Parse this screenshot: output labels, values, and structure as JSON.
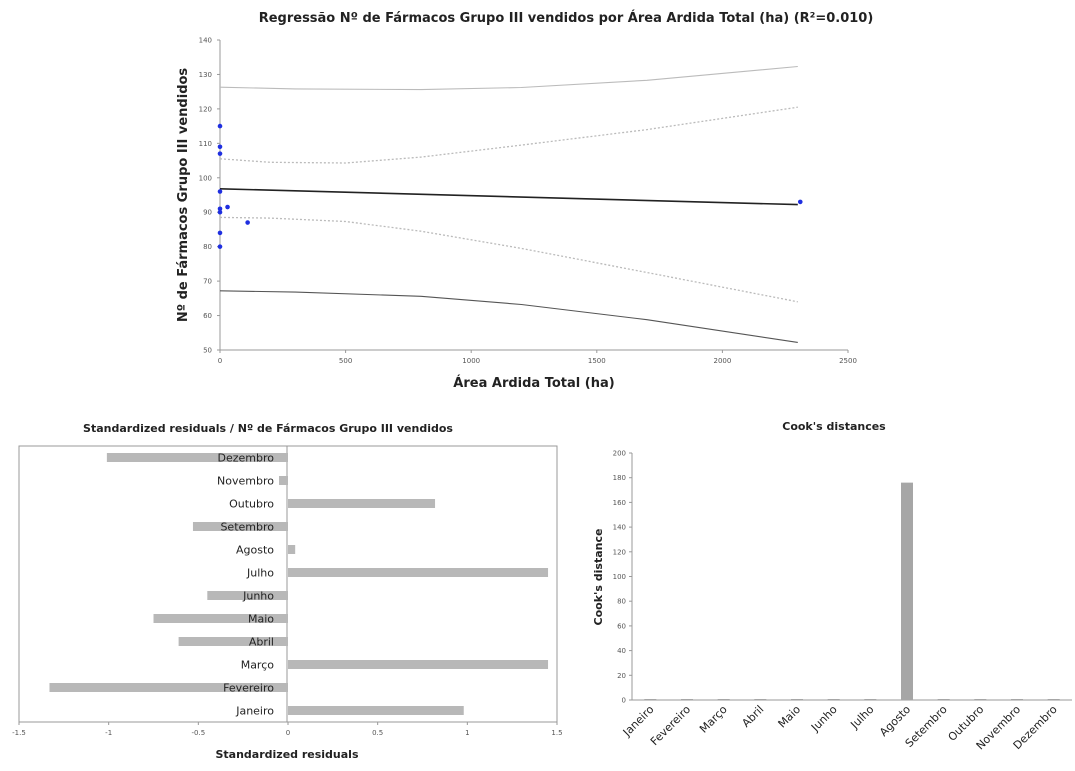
{
  "colors": {
    "points": "#1f2fe0",
    "regression_line": "#222222",
    "confidence_band": "#bbbbbb",
    "prediction_band": "#555555",
    "bars": "#b8b8b8",
    "cook_bars": "#a6a6a6"
  },
  "chart_data": [
    {
      "type": "scatter",
      "title": "Regressão Nº de Fármacos Grupo III vendidos por Área Ardida Total (ha) (R²=0.010)",
      "xlabel": "Área Ardida Total (ha)",
      "ylabel": "Nº de Fármacos Grupo III vendidos",
      "xlim": [
        0,
        2500
      ],
      "ylim": [
        50,
        140
      ],
      "xticks": [
        0,
        500,
        1000,
        1500,
        2000,
        2500
      ],
      "yticks": [
        50,
        60,
        70,
        80,
        90,
        100,
        110,
        120,
        130,
        140
      ],
      "points": [
        {
          "x": 0,
          "y": 115
        },
        {
          "x": 0,
          "y": 109
        },
        {
          "x": 0,
          "y": 107
        },
        {
          "x": 0,
          "y": 96
        },
        {
          "x": 0,
          "y": 91
        },
        {
          "x": 0,
          "y": 90
        },
        {
          "x": 0,
          "y": 84
        },
        {
          "x": 0,
          "y": 80
        },
        {
          "x": 30,
          "y": 91.5
        },
        {
          "x": 110,
          "y": 87
        },
        {
          "x": 2310,
          "y": 93
        }
      ],
      "regression": [
        {
          "x": 0,
          "y": 96.8
        },
        {
          "x": 2300,
          "y": 92.2
        }
      ],
      "confidence_upper": [
        {
          "x": 0,
          "y": 105.5
        },
        {
          "x": 200,
          "y": 104.5
        },
        {
          "x": 500,
          "y": 104.3
        },
        {
          "x": 800,
          "y": 106
        },
        {
          "x": 1200,
          "y": 109.5
        },
        {
          "x": 1700,
          "y": 114
        },
        {
          "x": 2300,
          "y": 120.5
        }
      ],
      "confidence_lower": [
        {
          "x": 0,
          "y": 88.5
        },
        {
          "x": 200,
          "y": 88.3
        },
        {
          "x": 500,
          "y": 87.3
        },
        {
          "x": 800,
          "y": 84.5
        },
        {
          "x": 1200,
          "y": 79.5
        },
        {
          "x": 1700,
          "y": 72.5
        },
        {
          "x": 2300,
          "y": 64
        }
      ],
      "prediction_upper": [
        {
          "x": 0,
          "y": 126.3
        },
        {
          "x": 300,
          "y": 125.8
        },
        {
          "x": 800,
          "y": 125.6
        },
        {
          "x": 1200,
          "y": 126.2
        },
        {
          "x": 1700,
          "y": 128.3
        },
        {
          "x": 2300,
          "y": 132.3
        }
      ],
      "prediction_lower": [
        {
          "x": 0,
          "y": 67.2
        },
        {
          "x": 300,
          "y": 66.8
        },
        {
          "x": 800,
          "y": 65.6
        },
        {
          "x": 1200,
          "y": 63.2
        },
        {
          "x": 1700,
          "y": 58.8
        },
        {
          "x": 2300,
          "y": 52.2
        }
      ]
    },
    {
      "type": "bar",
      "orientation": "horizontal",
      "title": "Standardized residuals / Nº de Fármacos Grupo III vendidos",
      "xlabel": "Standardized residuals",
      "xlim": [
        -1.5,
        1.5
      ],
      "xticks": [
        -1.5,
        -1,
        -0.5,
        0,
        0.5,
        1,
        1.5
      ],
      "categories": [
        "Janeiro",
        "Fevereiro",
        "Março",
        "Abril",
        "Maio",
        "Junho",
        "Julho",
        "Agosto",
        "Setembro",
        "Outubro",
        "Novembro",
        "Dezembro"
      ],
      "values": [
        0.98,
        -1.33,
        1.45,
        -0.61,
        -0.75,
        -0.45,
        1.45,
        0.04,
        -0.53,
        0.82,
        -0.05,
        -1.01
      ]
    },
    {
      "type": "bar",
      "title": "Cook's distances",
      "ylabel": "Cook's distance",
      "ylim": [
        0,
        200
      ],
      "yticks": [
        0,
        20,
        40,
        60,
        80,
        100,
        120,
        140,
        160,
        180,
        200
      ],
      "categories": [
        "Janeiro",
        "Fevereiro",
        "Março",
        "Abril",
        "Maio",
        "Junho",
        "Julho",
        "Agosto",
        "Setembro",
        "Outubro",
        "Novembro",
        "Dezembro"
      ],
      "values": [
        0.3,
        0.4,
        0.3,
        0.1,
        0.2,
        0.1,
        0.3,
        176,
        0.1,
        0.2,
        0.1,
        0.3
      ]
    }
  ]
}
